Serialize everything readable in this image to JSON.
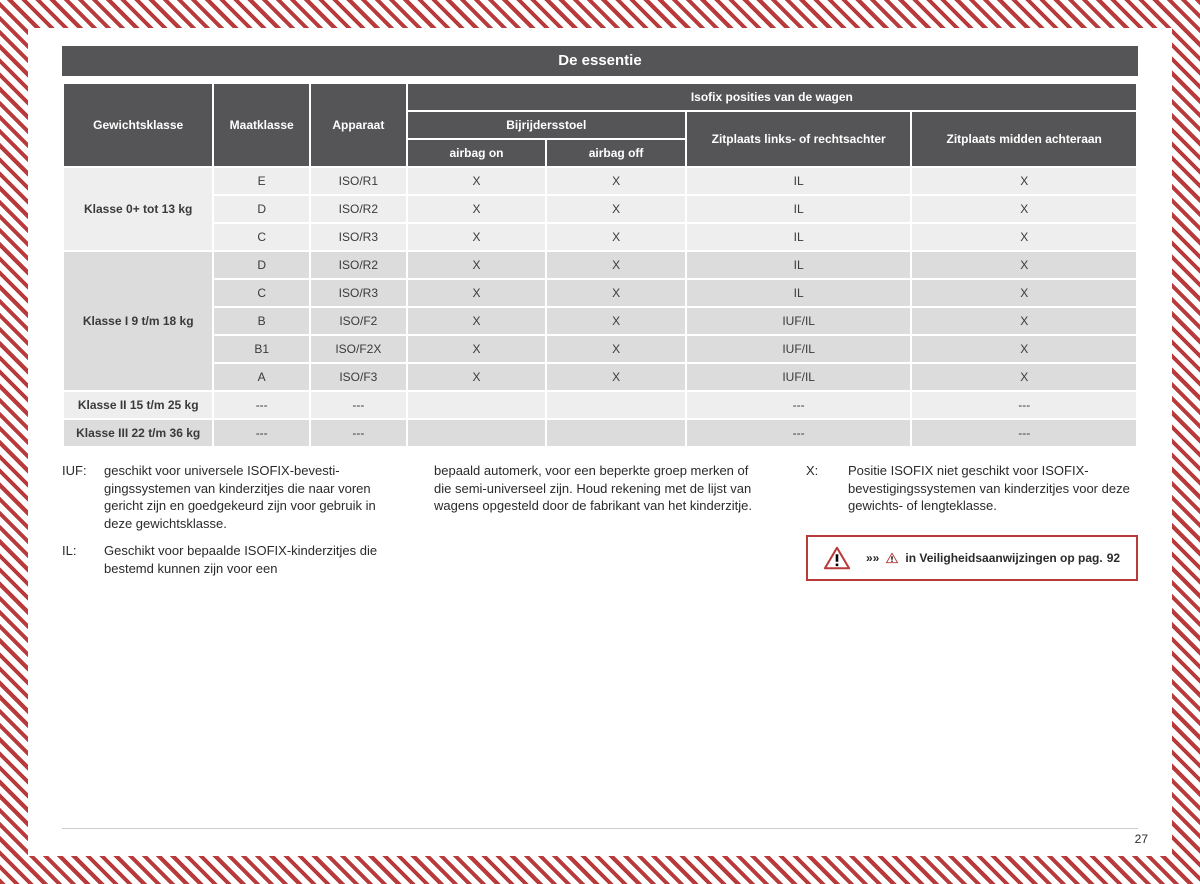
{
  "title": "De essentie",
  "page_number": "27",
  "table": {
    "headers": {
      "weight_class": "Gewichtsklasse",
      "size_class": "Maatklasse",
      "device": "Apparaat",
      "positions_group": "Isofix posities van de wagen",
      "passenger_group": "Bijrijdersstoel",
      "airbag_on": "airbag on",
      "airbag_off": "airbag off",
      "rear_side": "Zitplaats links- of rechtsachter",
      "rear_center": "Zitplaats midden ach­teraan"
    },
    "groups": [
      {
        "label": "Klasse 0+ tot 13 kg",
        "light": true,
        "rows": [
          {
            "size": "E",
            "device": "ISO/R1",
            "on": "X",
            "off": "X",
            "side": "IL",
            "center": "X"
          },
          {
            "size": "D",
            "device": "ISO/R2",
            "on": "X",
            "off": "X",
            "side": "IL",
            "center": "X"
          },
          {
            "size": "C",
            "device": "ISO/R3",
            "on": "X",
            "off": "X",
            "side": "IL",
            "center": "X"
          }
        ]
      },
      {
        "label": "Klasse I 9 t/m 18 kg",
        "light": false,
        "rows": [
          {
            "size": "D",
            "device": "ISO/R2",
            "on": "X",
            "off": "X",
            "side": "IL",
            "center": "X"
          },
          {
            "size": "C",
            "device": "ISO/R3",
            "on": "X",
            "off": "X",
            "side": "IL",
            "center": "X"
          },
          {
            "size": "B",
            "device": "ISO/F2",
            "on": "X",
            "off": "X",
            "side": "IUF/IL",
            "center": "X"
          },
          {
            "size": "B1",
            "device": "ISO/F2X",
            "on": "X",
            "off": "X",
            "side": "IUF/IL",
            "center": "X"
          },
          {
            "size": "A",
            "device": "ISO/F3",
            "on": "X",
            "off": "X",
            "side": "IUF/IL",
            "center": "X"
          }
        ]
      },
      {
        "label": "Klasse II 15 t/m 25 kg",
        "light": true,
        "rows": [
          {
            "size": "---",
            "device": "---",
            "on": "",
            "off": "",
            "side": "---",
            "center": "---"
          }
        ]
      },
      {
        "label": "Klasse III 22 t/m 36 kg",
        "light": false,
        "rows": [
          {
            "size": "---",
            "device": "---",
            "on": "",
            "off": "",
            "side": "---",
            "center": "---"
          }
        ]
      }
    ]
  },
  "legend": {
    "iuf_key": "IUF:",
    "iuf_text": "geschikt voor universele ISOFIX-bevesti­gingssystemen van kinderzitjes die naar voren gericht zijn en goedgekeurd zijn voor gebruik in deze gewichtsklasse.",
    "il_key": "IL:",
    "il_text": "Geschikt voor bepaalde ISOFIX-kinderzi­tjes die bestemd kunnen zijn voor een",
    "middle_text": "bepaald automerk, voor een beperkte groep merken of die semi-universeel zijn. Houd rekening met de lijst van wa­gens opgesteld door de fabrikant van het kinderzitje.",
    "x_key": "X:",
    "x_text": "Positie ISOFIX niet geschikt voor ISOFIX-bevestigingssystemen van kinderzitjes voor deze gewichts- of lengteklasse."
  },
  "warning": {
    "arrows": "»»",
    "text_before": " in Veiligheidsaanwijzingen op pag. ",
    "page_ref": "92"
  }
}
